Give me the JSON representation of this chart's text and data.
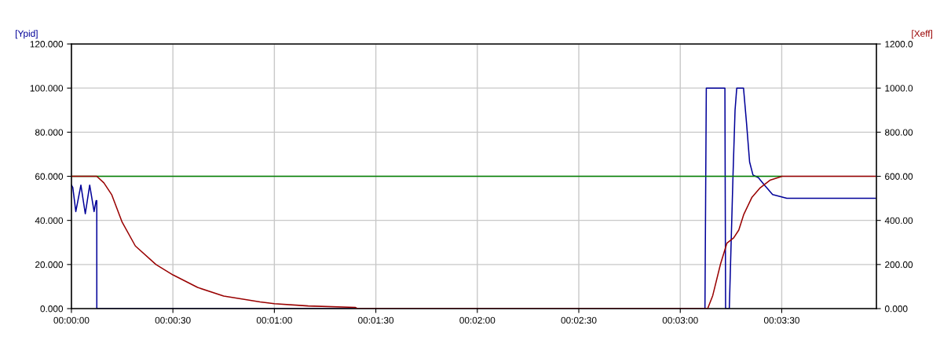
{
  "chart_data": {
    "type": "line",
    "ylabel": "[Ypid]",
    "y2label": "[Xeff]",
    "xlim": [
      0,
      238
    ],
    "xticks": [
      {
        "value": 0,
        "label": "00:00:00"
      },
      {
        "value": 30,
        "label": "00:00:30"
      },
      {
        "value": 60,
        "label": "00:01:00"
      },
      {
        "value": 90,
        "label": "00:01:30"
      },
      {
        "value": 120,
        "label": "00:02:00"
      },
      {
        "value": 150,
        "label": "00:02:30"
      },
      {
        "value": 180,
        "label": "00:03:00"
      },
      {
        "value": 210,
        "label": "00:03:30"
      }
    ],
    "ylim": [
      0,
      120
    ],
    "yticks": [
      {
        "value": 0,
        "label": "0.000"
      },
      {
        "value": 20,
        "label": "20.000"
      },
      {
        "value": 40,
        "label": "40.000"
      },
      {
        "value": 60,
        "label": "60.000"
      },
      {
        "value": 80,
        "label": "80.000"
      },
      {
        "value": 100,
        "label": "100.000"
      },
      {
        "value": 120,
        "label": "120.000"
      }
    ],
    "y2lim": [
      0,
      1200
    ],
    "y2ticks": [
      {
        "value": 0,
        "label": "0.000"
      },
      {
        "value": 200,
        "label": "200.00"
      },
      {
        "value": 400,
        "label": "400.00"
      },
      {
        "value": 600,
        "label": "600.00"
      },
      {
        "value": 800,
        "label": "800.00"
      },
      {
        "value": 1000,
        "label": "1000.0"
      },
      {
        "value": 1200,
        "label": "1200.0"
      }
    ],
    "grid": true,
    "series": [
      {
        "color": "#008000",
        "axis": "y2",
        "x": [
          0,
          210
        ],
        "values": [
          600,
          600
        ]
      },
      {
        "color": "#990000",
        "axis": "y2",
        "x": [
          0,
          2,
          4,
          6,
          7.5,
          9.6,
          11.9,
          15,
          18.9,
          25,
          30,
          37.3,
          45,
          55.8,
          60,
          70,
          84,
          84.5,
          188.1,
          189.6,
          191.9,
          193.8,
          195.8,
          197.3,
          198.8,
          201.2,
          203.5,
          206.5,
          209.6,
          210,
          237.7
        ],
        "values": [
          600,
          600,
          600,
          600,
          600,
          570,
          517,
          392,
          284,
          200,
          153,
          96,
          57,
          30,
          22,
          12,
          5,
          0,
          0,
          59,
          202,
          297,
          321,
          356,
          428,
          505,
          546,
          582,
          597,
          600,
          600
        ]
      },
      {
        "color": "#000099",
        "axis": "y",
        "x": [
          0,
          0.4,
          1.3,
          2.8,
          4.1,
          5.4,
          6.7,
          7.3,
          7.5,
          7.51,
          187.3,
          187.5,
          187.7,
          193.2,
          193.4,
          194.5,
          195.6,
          196.2,
          196.7,
          198.7,
          199.6,
          200.5,
          201.5,
          203.1,
          205,
          207.3,
          211.5,
          237.7
        ],
        "values": [
          56,
          55,
          44,
          56,
          43,
          56,
          44,
          49,
          49,
          0,
          0,
          50,
          100,
          100,
          0,
          0,
          60.6,
          90,
          100,
          100,
          84,
          66.5,
          60.6,
          59.4,
          55.8,
          51.7,
          50,
          50
        ]
      }
    ]
  }
}
